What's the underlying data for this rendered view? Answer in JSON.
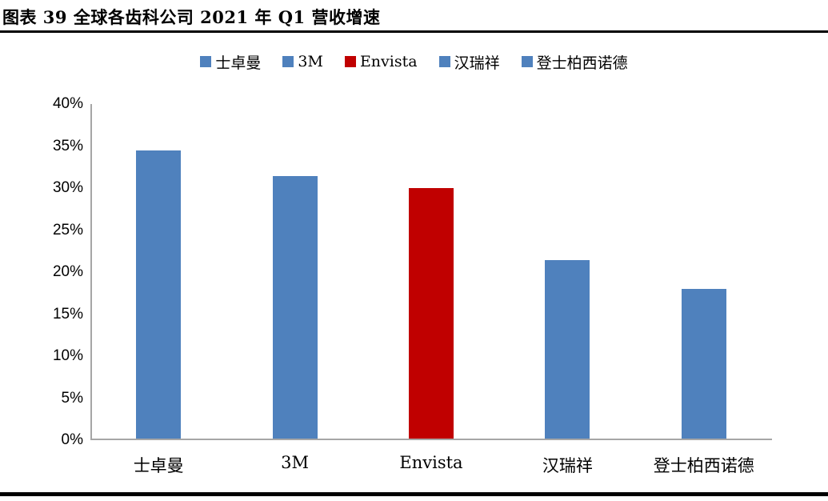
{
  "figure": {
    "title": "图表 39 全球各齿科公司 2021 年 Q1 营收增速"
  },
  "chart_data": {
    "type": "bar",
    "title": "全球各齿科公司 2021 年 Q1 营收增速",
    "categories": [
      "士卓曼",
      "3M",
      "Envista",
      "汉瑞祥",
      "登士柏西诺德"
    ],
    "values": [
      34.3,
      31.2,
      29.8,
      21.2,
      17.8
    ],
    "unit": "%",
    "xlabel": "",
    "ylabel": "",
    "ylim": [
      0,
      40
    ],
    "ytick_step": 5,
    "ytick_labels": [
      "0%",
      "5%",
      "10%",
      "15%",
      "20%",
      "25%",
      "30%",
      "35%",
      "40%"
    ],
    "legend_position": "top",
    "legend": [
      {
        "label": "士卓曼",
        "color": "#4F81BD"
      },
      {
        "label": "3M",
        "color": "#4F81BD"
      },
      {
        "label": "Envista",
        "color": "#C00000"
      },
      {
        "label": "汉瑞祥",
        "color": "#4F81BD"
      },
      {
        "label": "登士柏西诺德",
        "color": "#4F81BD"
      }
    ],
    "bar_colors": [
      "#4F81BD",
      "#4F81BD",
      "#C00000",
      "#4F81BD",
      "#4F81BD"
    ],
    "grid": false,
    "colors": {
      "axis": "#A6A6A6",
      "text": "#000000",
      "background": "#FFFFFF",
      "blue_series": "#4F81BD",
      "red_highlight": "#C00000"
    }
  }
}
